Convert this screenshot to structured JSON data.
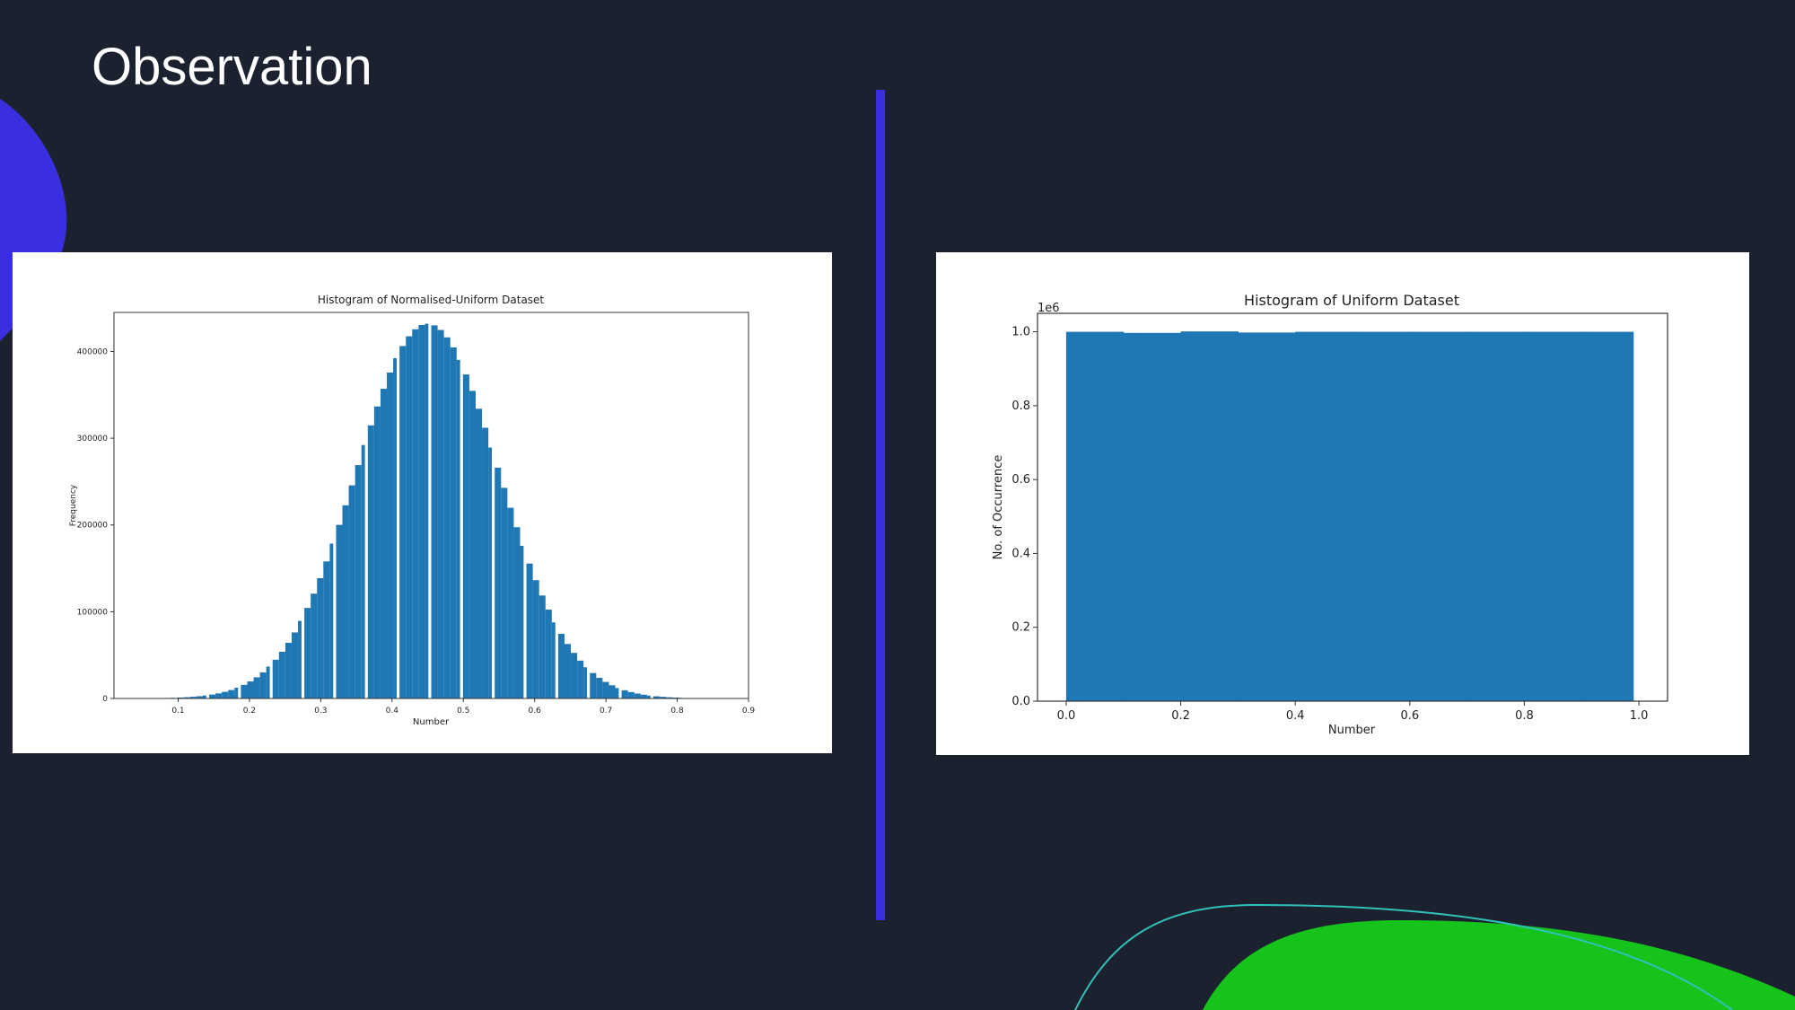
{
  "slide": {
    "title": "Observation"
  },
  "colors": {
    "background": "#1c2130",
    "accent_blue": "#3a2fe0",
    "accent_green": "#16c31a",
    "accent_teal": "#2fc2b8",
    "bar": "#1f77b4"
  },
  "chart_data": [
    {
      "type": "bar",
      "title": "Histogram of Normalised-Uniform Dataset",
      "xlabel": "Number",
      "ylabel": "Frequency",
      "xlim": [
        0.01,
        0.9
      ],
      "ylim": [
        0,
        445000
      ],
      "xticks": [
        0.1,
        0.2,
        0.3,
        0.4,
        0.5,
        0.6,
        0.7,
        0.8,
        0.9
      ],
      "yticks": [
        0,
        100000,
        200000,
        300000,
        400000
      ],
      "xtick_labels": [
        "0.1",
        "0.2",
        "0.3",
        "0.4",
        "0.5",
        "0.6",
        "0.7",
        "0.8",
        "0.9"
      ],
      "ytick_labels": [
        "0",
        "100000",
        "200000",
        "300000",
        "400000"
      ],
      "bin_width": 0.0089,
      "bin_start": 0.01,
      "gap_every": 5,
      "series": [
        {
          "distribution": "normal",
          "mean": 0.45,
          "std": 0.1,
          "peak": 432000
        }
      ],
      "grid": false,
      "legend": "none"
    },
    {
      "type": "bar",
      "title": "Histogram of Uniform Dataset",
      "xlabel": "Number",
      "ylabel": "No. of Occurrence",
      "offset_label": "1e6",
      "xlim": [
        -0.05,
        1.05
      ],
      "ylim": [
        0,
        1.05
      ],
      "xticks": [
        0.0,
        0.2,
        0.4,
        0.6,
        0.8,
        1.0
      ],
      "yticks": [
        0.0,
        0.2,
        0.4,
        0.6,
        0.8,
        1.0
      ],
      "xtick_labels": [
        "0.0",
        "0.2",
        "0.4",
        "0.6",
        "0.8",
        "1.0"
      ],
      "ytick_labels": [
        "0.0",
        "0.2",
        "0.4",
        "0.6",
        "0.8",
        "1.0"
      ],
      "bins": [
        {
          "x0": 0.0,
          "x1": 0.1,
          "value": 1.0
        },
        {
          "x0": 0.1,
          "x1": 0.2,
          "value": 0.997
        },
        {
          "x0": 0.2,
          "x1": 0.3,
          "value": 1.001
        },
        {
          "x0": 0.3,
          "x1": 0.4,
          "value": 0.998
        },
        {
          "x0": 0.4,
          "x1": 0.5,
          "value": 1.0
        },
        {
          "x0": 0.5,
          "x1": 0.6,
          "value": 1.0
        },
        {
          "x0": 0.6,
          "x1": 0.7,
          "value": 1.0
        },
        {
          "x0": 0.7,
          "x1": 0.8,
          "value": 1.0
        },
        {
          "x0": 0.8,
          "x1": 0.9,
          "value": 1.0
        },
        {
          "x0": 0.9,
          "x1": 0.99,
          "value": 1.0
        }
      ],
      "grid": false,
      "legend": "none"
    }
  ]
}
